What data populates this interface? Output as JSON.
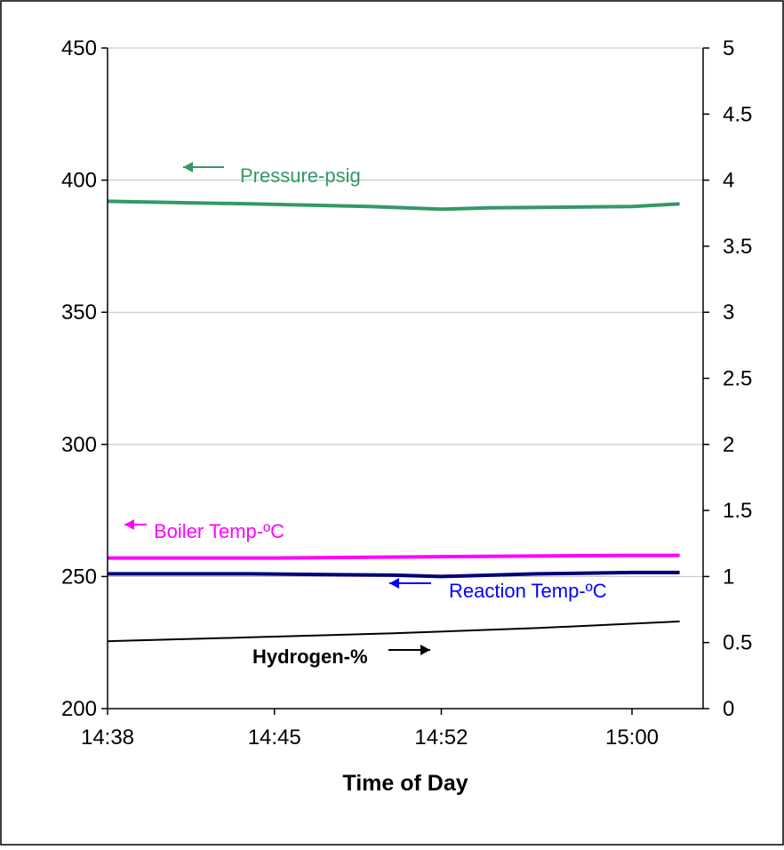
{
  "chart_data": {
    "type": "line",
    "title": "",
    "xlabel": "Time of Day",
    "ylabel": "",
    "y2label": "",
    "x_ticks": [
      "14:38",
      "14:45",
      "14:52",
      "15:00"
    ],
    "x_tick_minutes_after_1438": [
      0,
      7,
      14,
      21
    ],
    "xlim": [
      "14:38",
      "15:02"
    ],
    "ylim": [
      200,
      450
    ],
    "y_ticks": [
      "200",
      "250",
      "300",
      "350",
      "400",
      "450"
    ],
    "y2lim": [
      0,
      5
    ],
    "y2_ticks": [
      "0",
      "0.5",
      "1",
      "1.5",
      "2",
      "2.5",
      "3",
      "3.5",
      "4",
      "4.5",
      "5"
    ],
    "grid": "horizontal",
    "series": [
      {
        "name": "Pressure-psig",
        "axis": "left",
        "color": "#339966",
        "x": [
          "14:38",
          "14:44",
          "14:49",
          "14:52",
          "14:54",
          "15:00",
          "15:02"
        ],
        "y": [
          392,
          391,
          390,
          389,
          389.5,
          390,
          391
        ]
      },
      {
        "name": "Boiler Temp-ºC",
        "axis": "left",
        "color": "#ff00ff",
        "x": [
          "14:38",
          "14:45",
          "14:52",
          "15:00",
          "15:02"
        ],
        "y": [
          257,
          257,
          257.5,
          258,
          258
        ]
      },
      {
        "name": "Reaction Temp-ºC",
        "axis": "left",
        "color": "#000080",
        "x": [
          "14:38",
          "14:44",
          "14:50",
          "14:52",
          "14:56",
          "15:00",
          "15:02"
        ],
        "y": [
          251,
          251,
          250.5,
          250,
          251,
          251.5,
          251.5
        ]
      },
      {
        "name": "Hydrogen-%",
        "axis": "right",
        "color": "#000000",
        "x": [
          "14:38",
          "14:44",
          "14:50",
          "14:56",
          "15:02"
        ],
        "y": [
          0.51,
          0.54,
          0.57,
          0.61,
          0.66
        ]
      }
    ],
    "annotations": [
      {
        "text": "Pressure-psig",
        "color": "#339966",
        "arrow": "left",
        "points_to": "left-axis"
      },
      {
        "text": "Boiler Temp-ºC",
        "color": "#ff00ff",
        "arrow": "left",
        "points_to": "left-axis"
      },
      {
        "text": "Reaction Temp-ºC",
        "color": "#0000ff",
        "arrow": "left",
        "points_to": "left-axis"
      },
      {
        "text": "Hydrogen-%",
        "color": "#000000",
        "arrow": "right",
        "points_to": "right-axis"
      }
    ]
  }
}
